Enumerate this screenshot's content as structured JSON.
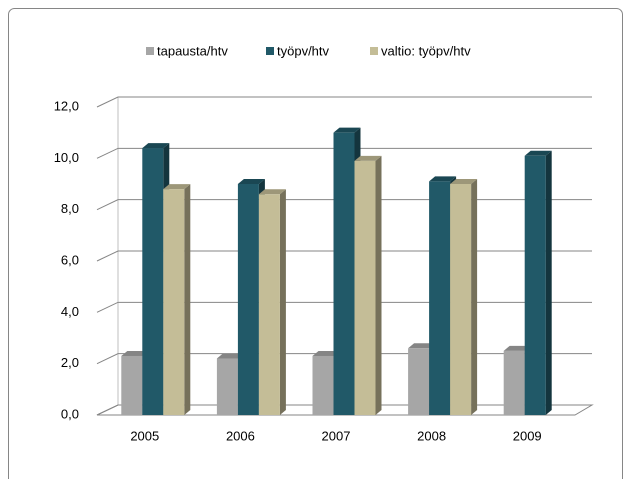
{
  "chart_data": {
    "type": "bar3d",
    "categories": [
      "2005",
      "2006",
      "2007",
      "2008",
      "2009"
    ],
    "series": [
      {
        "name": "tapausta/htv",
        "color": "#a6a6a6",
        "values": [
          2.3,
          2.2,
          2.3,
          2.6,
          2.5
        ]
      },
      {
        "name": "työpv/htv",
        "color": "#215968",
        "values": [
          10.4,
          9.0,
          11.0,
          9.1,
          10.1
        ]
      },
      {
        "name": "valtio: työpv/htv",
        "color": "#c4bd97",
        "values": [
          8.8,
          8.6,
          9.9,
          9.0,
          null
        ]
      }
    ],
    "ylim": [
      0,
      12
    ],
    "yticks": [
      {
        "value": 0,
        "label": "0,0"
      },
      {
        "value": 2,
        "label": "2,0"
      },
      {
        "value": 4,
        "label": "4,0"
      },
      {
        "value": 6,
        "label": "6,0"
      },
      {
        "value": 8,
        "label": "8,0"
      },
      {
        "value": 10,
        "label": "10,0"
      },
      {
        "value": 12,
        "label": "12,0"
      }
    ],
    "grid": true,
    "legend": "top"
  }
}
